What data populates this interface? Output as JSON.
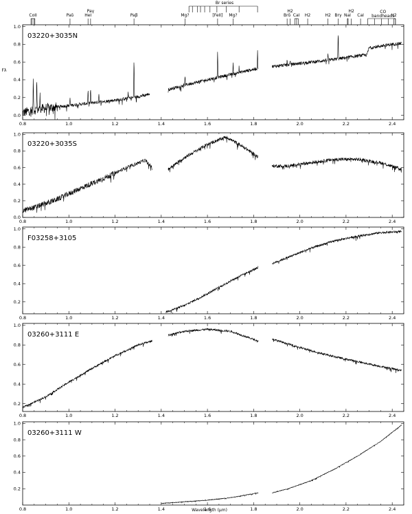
{
  "figure": {
    "xlabel": "Wavelength (μm)",
    "ylabel": "Fλ"
  },
  "line_ids": {
    "br_series_label": "Br series",
    "features": [
      {
        "label": "CoII",
        "wavelength": 0.845,
        "marks": [
          0.836,
          0.841,
          0.849,
          0.853
        ]
      },
      {
        "label": "Paδ",
        "wavelength": 1.005,
        "marks": [
          1.005
        ]
      },
      {
        "label": "HeI",
        "wavelength": 1.083,
        "marks": [
          1.083
        ]
      },
      {
        "label": "Paγ",
        "wavelength": 1.094,
        "marks": [
          1.094
        ]
      },
      {
        "label": "Paβ",
        "wavelength": 1.282,
        "marks": [
          1.282
        ]
      },
      {
        "label": "Mg?",
        "wavelength": 1.503,
        "marks": [
          1.503
        ]
      },
      {
        "label": "[FeII]",
        "wavelength": 1.644,
        "marks": [
          1.644
        ]
      },
      {
        "label": "Mg?",
        "wavelength": 1.711,
        "marks": [
          1.711
        ]
      },
      {
        "label": "Brδ",
        "wavelength": 1.945,
        "marks": [
          1.945
        ]
      },
      {
        "label": "H2",
        "wavelength": 1.958,
        "marks": [
          1.958
        ]
      },
      {
        "label": "CaI",
        "wavelength": 1.985,
        "marks": [
          1.978,
          1.986,
          1.993
        ]
      },
      {
        "label": "H2",
        "wavelength": 2.034,
        "marks": [
          2.034
        ]
      },
      {
        "label": "H2",
        "wavelength": 2.122,
        "marks": [
          2.122
        ]
      },
      {
        "label": "Brγ",
        "wavelength": 2.166,
        "marks": [
          2.166
        ]
      },
      {
        "label": "NaI",
        "wavelength": 2.206,
        "marks": [
          2.206,
          2.209
        ]
      },
      {
        "label": "H2",
        "wavelength": 2.223,
        "marks": [
          2.223
        ]
      },
      {
        "label": "CaI",
        "wavelength": 2.263,
        "marks": [
          2.263
        ]
      },
      {
        "label": "CO",
        "wavelength": 2.36,
        "marks": [
          2.294,
          2.323,
          2.353,
          2.383,
          2.414
        ]
      },
      {
        "label": "bandheads",
        "wavelength": 2.36,
        "marks": []
      },
      {
        "label": "H2",
        "wavelength": 2.407,
        "marks": [
          2.407,
          2.414
        ]
      }
    ],
    "br_marks": [
      1.52,
      1.535,
      1.556,
      1.57,
      1.588,
      1.611,
      1.641,
      1.681,
      1.737,
      1.817
    ]
  },
  "chart_data": [
    {
      "type": "line",
      "label": "03220+3035N",
      "xlim": [
        0.8,
        2.45
      ],
      "ylim": [
        -0.05,
        1.02
      ],
      "xticks": [
        "0.8",
        "1.0",
        "1.2",
        "1.4",
        "1.6",
        "1.8",
        "2.0",
        "2.2",
        "2.4"
      ],
      "yticks": [
        "0.0",
        "0.2",
        "0.4",
        "0.6",
        "0.8",
        "1.0"
      ],
      "ytick_values": [
        0.0,
        0.2,
        0.4,
        0.6,
        0.8,
        1.0
      ],
      "noise": 0.018,
      "segments": [
        {
          "points": [
            [
              0.8,
              0.03
            ],
            [
              0.85,
              0.06
            ],
            [
              0.9,
              0.08
            ],
            [
              1.0,
              0.11
            ],
            [
              1.1,
              0.14
            ],
            [
              1.2,
              0.17
            ],
            [
              1.3,
              0.21
            ],
            [
              1.35,
              0.24
            ]
          ]
        },
        {
          "points": [
            [
              1.43,
              0.29
            ],
            [
              1.5,
              0.34
            ],
            [
              1.6,
              0.4
            ],
            [
              1.7,
              0.46
            ],
            [
              1.82,
              0.53
            ]
          ]
        },
        {
          "points": [
            [
              1.88,
              0.55
            ],
            [
              1.95,
              0.57
            ],
            [
              2.05,
              0.6
            ],
            [
              2.15,
              0.63
            ],
            [
              2.25,
              0.67
            ],
            [
              2.29,
              0.68
            ],
            [
              2.3,
              0.76
            ],
            [
              2.35,
              0.78
            ],
            [
              2.4,
              0.8
            ],
            [
              2.44,
              0.81
            ]
          ]
        }
      ],
      "emission": [
        [
          0.846,
          0.38
        ],
        [
          0.861,
          0.37
        ],
        [
          0.875,
          0.17
        ],
        [
          1.005,
          0.09
        ],
        [
          1.083,
          0.16
        ],
        [
          1.094,
          0.18
        ],
        [
          1.13,
          0.1
        ],
        [
          1.257,
          0.08
        ],
        [
          1.282,
          0.48
        ],
        [
          1.503,
          0.12
        ],
        [
          1.644,
          0.3
        ],
        [
          1.711,
          0.12
        ],
        [
          1.737,
          0.08
        ],
        [
          1.817,
          0.22
        ],
        [
          1.945,
          0.07
        ],
        [
          1.958,
          0.06
        ],
        [
          2.122,
          0.08
        ],
        [
          2.166,
          0.32
        ]
      ]
    },
    {
      "type": "line",
      "label": "03220+3035S",
      "xlim": [
        0.8,
        2.45
      ],
      "ylim": [
        0.0,
        1.02
      ],
      "xticks": [
        "0.8",
        "1.0",
        "1.2",
        "1.4",
        "1.6",
        "1.8",
        "2.0",
        "2.2",
        "2.4"
      ],
      "yticks": [
        "0.0",
        "0.2",
        "0.4",
        "0.6",
        "0.8",
        "1.0"
      ],
      "ytick_values": [
        0.0,
        0.2,
        0.4,
        0.6,
        0.8,
        1.0
      ],
      "noise": 0.02,
      "segments": [
        {
          "points": [
            [
              0.8,
              0.08
            ],
            [
              0.85,
              0.12
            ],
            [
              0.95,
              0.22
            ],
            [
              1.05,
              0.35
            ],
            [
              1.15,
              0.47
            ],
            [
              1.25,
              0.6
            ],
            [
              1.33,
              0.69
            ],
            [
              1.36,
              0.6
            ]
          ]
        },
        {
          "points": [
            [
              1.43,
              0.58
            ],
            [
              1.5,
              0.72
            ],
            [
              1.6,
              0.88
            ],
            [
              1.68,
              0.97
            ],
            [
              1.75,
              0.86
            ],
            [
              1.82,
              0.73
            ]
          ]
        },
        {
          "points": [
            [
              1.88,
              0.62
            ],
            [
              1.95,
              0.62
            ],
            [
              2.05,
              0.66
            ],
            [
              2.15,
              0.7
            ],
            [
              2.25,
              0.7
            ],
            [
              2.35,
              0.66
            ],
            [
              2.44,
              0.58
            ]
          ]
        }
      ],
      "emission": []
    },
    {
      "type": "line",
      "label": "F03258+3105",
      "xlim": [
        0.8,
        2.45
      ],
      "ylim": [
        0.07,
        1.02
      ],
      "xticks": [
        "0.8",
        "1.0",
        "1.2",
        "1.4",
        "1.6",
        "1.8",
        "2.0",
        "2.2",
        "2.4"
      ],
      "yticks": [
        "0.2",
        "0.4",
        "0.6",
        "0.8",
        "1.0"
      ],
      "ytick_values": [
        0.2,
        0.4,
        0.6,
        0.8,
        1.0
      ],
      "noise": 0.012,
      "segments": [
        {
          "points": [
            [
              1.42,
              0.09
            ],
            [
              1.5,
              0.16
            ],
            [
              1.6,
              0.29
            ],
            [
              1.7,
              0.43
            ],
            [
              1.82,
              0.58
            ]
          ]
        },
        {
          "points": [
            [
              1.88,
              0.62
            ],
            [
              1.95,
              0.69
            ],
            [
              2.05,
              0.79
            ],
            [
              2.15,
              0.87
            ],
            [
              2.25,
              0.92
            ],
            [
              2.35,
              0.96
            ],
            [
              2.44,
              0.97
            ]
          ]
        }
      ],
      "emission": []
    },
    {
      "type": "line",
      "label": "03260+3111 E",
      "xlim": [
        0.8,
        2.45
      ],
      "ylim": [
        0.12,
        1.02
      ],
      "xticks": [
        "0.8",
        "1.0",
        "1.2",
        "1.4",
        "1.6",
        "1.8",
        "2.0",
        "2.2",
        "2.4"
      ],
      "yticks": [
        "0.2",
        "0.4",
        "0.6",
        "0.8",
        "1.0"
      ],
      "ytick_values": [
        0.2,
        0.4,
        0.6,
        0.8,
        1.0
      ],
      "noise": 0.01,
      "segments": [
        {
          "points": [
            [
              0.8,
              0.16
            ],
            [
              0.9,
              0.27
            ],
            [
              1.0,
              0.42
            ],
            [
              1.1,
              0.56
            ],
            [
              1.2,
              0.69
            ],
            [
              1.3,
              0.8
            ],
            [
              1.36,
              0.84
            ]
          ]
        },
        {
          "points": [
            [
              1.43,
              0.9
            ],
            [
              1.5,
              0.94
            ],
            [
              1.6,
              0.96
            ],
            [
              1.7,
              0.94
            ],
            [
              1.82,
              0.84
            ]
          ]
        },
        {
          "points": [
            [
              1.88,
              0.86
            ],
            [
              1.95,
              0.81
            ],
            [
              2.05,
              0.74
            ],
            [
              2.15,
              0.68
            ],
            [
              2.25,
              0.63
            ],
            [
              2.35,
              0.58
            ],
            [
              2.44,
              0.54
            ]
          ]
        }
      ],
      "emission": []
    },
    {
      "type": "line",
      "label": "03260+3111 W",
      "xlim": [
        0.8,
        2.45
      ],
      "ylim": [
        0.0,
        1.02
      ],
      "xticks": [
        "0.8",
        "1.0",
        "1.2",
        "1.4",
        "1.6",
        "1.8",
        "2.0",
        "2.2",
        "2.4"
      ],
      "yticks": [
        "0.2",
        "0.4",
        "0.6",
        "0.8",
        "1.0"
      ],
      "ytick_values": [
        0.2,
        0.4,
        0.6,
        0.8,
        1.0
      ],
      "noise": 0.004,
      "segments": [
        {
          "points": [
            [
              1.4,
              0.02
            ],
            [
              1.5,
              0.04
            ],
            [
              1.6,
              0.06
            ],
            [
              1.7,
              0.09
            ],
            [
              1.82,
              0.15
            ]
          ]
        },
        {
          "points": [
            [
              1.88,
              0.15
            ],
            [
              1.95,
              0.2
            ],
            [
              2.05,
              0.3
            ],
            [
              2.15,
              0.44
            ],
            [
              2.25,
              0.6
            ],
            [
              2.35,
              0.78
            ],
            [
              2.44,
              0.98
            ]
          ]
        }
      ],
      "emission": []
    }
  ]
}
